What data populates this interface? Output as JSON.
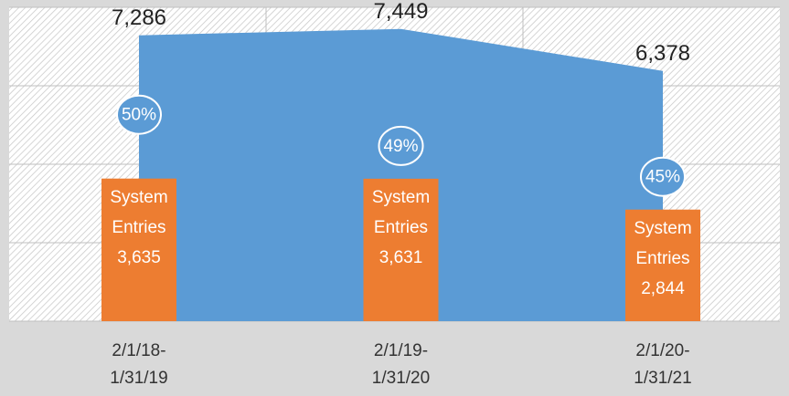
{
  "chart_data": {
    "type": "area_bar",
    "categories": [
      "2/1/18-1/31/19",
      "2/1/19-1/31/20",
      "2/1/20-1/31/21"
    ],
    "series": [
      {
        "kind": "area",
        "color": "#5b9bd5",
        "values": [
          7286,
          7449,
          6378
        ],
        "value_labels": [
          "7,286",
          "7,449",
          "6,378"
        ]
      },
      {
        "kind": "bar",
        "name": "System Entries",
        "color": "#ed7d31",
        "values": [
          3635,
          3631,
          2844
        ],
        "value_labels": [
          "3,635",
          "3,631",
          "2,844"
        ]
      }
    ],
    "percentages": {
      "values": [
        50,
        49,
        45
      ],
      "value_labels": [
        "50%",
        "49%",
        "45%"
      ]
    },
    "ylim": [
      0,
      8000
    ],
    "yticks": [
      0,
      2000,
      4000,
      6000,
      8000
    ],
    "grid": true
  }
}
